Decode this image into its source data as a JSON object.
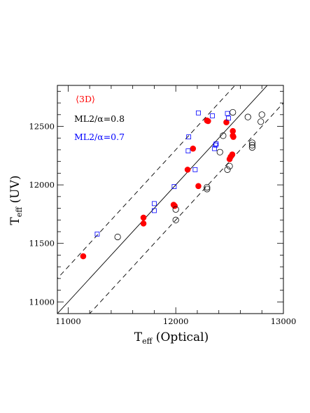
{
  "chart_data": {
    "type": "scatter",
    "xlabel": {
      "main": "T",
      "sub": "eff",
      "rest": " (Optical)"
    },
    "ylabel": {
      "main": "T",
      "sub": "eff",
      "rest": " (UV)"
    },
    "xlim": [
      10900,
      13000
    ],
    "ylim": [
      10900,
      12850
    ],
    "x_ticks": [
      11000,
      12000,
      13000
    ],
    "y_ticks": [
      11000,
      11500,
      12000,
      12500
    ],
    "x_tick_labels": [
      "11000",
      "12000",
      "13000"
    ],
    "y_tick_labels": [
      "11000",
      "11500",
      "12000",
      "12500"
    ],
    "grid": false,
    "legend": [
      {
        "text": "⟨3D⟩",
        "color": "#ff0000"
      },
      {
        "text": "ML2/α=0.8",
        "color": "#000000"
      },
      {
        "text": "ML2/α=0.7",
        "color": "#0000ff"
      }
    ],
    "reference_lines": [
      {
        "style": "solid",
        "offset": 0
      },
      {
        "style": "dashed",
        "offset": 300
      },
      {
        "style": "dashed",
        "offset": -300
      }
    ],
    "series": [
      {
        "marker": "filled-circle",
        "color": "#ff0000",
        "points": [
          [
            11140,
            11390
          ],
          [
            11700,
            11720
          ],
          [
            11700,
            11670
          ],
          [
            11980,
            11830
          ],
          [
            11990,
            11820
          ],
          [
            12110,
            12130
          ],
          [
            12160,
            12310
          ],
          [
            12210,
            11990
          ],
          [
            12290,
            12550
          ],
          [
            12300,
            12545
          ],
          [
            12470,
            12535
          ],
          [
            12500,
            12220
          ],
          [
            12510,
            12240
          ],
          [
            12525,
            12260
          ],
          [
            12530,
            12460
          ],
          [
            12530,
            12420
          ],
          [
            12535,
            12410
          ]
        ]
      },
      {
        "marker": "open-circle",
        "color": "#000000",
        "points": [
          [
            11460,
            11555
          ],
          [
            12000,
            11790
          ],
          [
            12000,
            11700
          ],
          [
            12290,
            11980
          ],
          [
            12290,
            11965
          ],
          [
            12410,
            12280
          ],
          [
            12440,
            12420
          ],
          [
            12480,
            12130
          ],
          [
            12500,
            12160
          ],
          [
            12530,
            12620
          ],
          [
            12670,
            12580
          ],
          [
            12710,
            12360
          ],
          [
            12710,
            12340
          ],
          [
            12710,
            12320
          ],
          [
            12790,
            12540
          ],
          [
            12800,
            12600
          ]
        ]
      },
      {
        "marker": "open-square",
        "color": "#0000ff",
        "points": [
          [
            11270,
            11580
          ],
          [
            11800,
            11840
          ],
          [
            11800,
            11780
          ],
          [
            11985,
            11985
          ],
          [
            12115,
            12290
          ],
          [
            12120,
            12410
          ],
          [
            12180,
            12130
          ],
          [
            12210,
            12615
          ],
          [
            12340,
            12590
          ],
          [
            12360,
            12310
          ],
          [
            12370,
            12340
          ],
          [
            12375,
            12350
          ],
          [
            12480,
            12610
          ],
          [
            12490,
            12570
          ]
        ]
      }
    ]
  }
}
